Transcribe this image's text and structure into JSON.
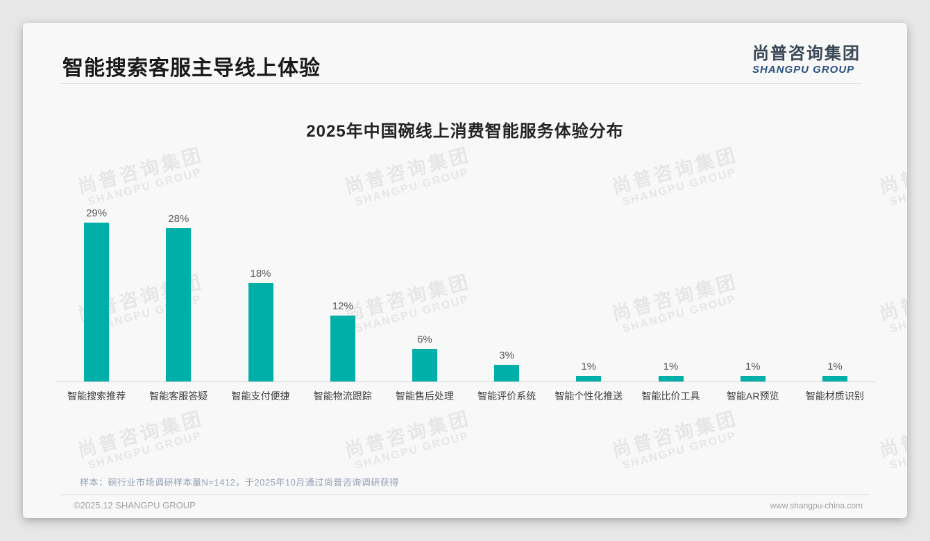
{
  "header": {
    "title": "智能搜索客服主导线上体验",
    "logo": {
      "cn": "尚普咨询集团",
      "en": "SHANGPU GROUP"
    }
  },
  "watermark": {
    "line1": "尚普咨询集团",
    "line2": "SHANGPU GROUP"
  },
  "chart_data": {
    "type": "bar",
    "title": "2025年中国碗线上消费智能服务体验分布",
    "categories": [
      "智能搜索推荐",
      "智能客服答疑",
      "智能支付便捷",
      "智能物流跟踪",
      "智能售后处理",
      "智能评价系统",
      "智能个性化推送",
      "智能比价工具",
      "智能AR预览",
      "智能材质识别"
    ],
    "values": [
      29,
      28,
      18,
      12,
      6,
      3,
      1,
      1,
      1,
      1
    ],
    "unit": "%",
    "value_labels": [
      "29%",
      "28%",
      "18%",
      "12%",
      "6%",
      "3%",
      "1%",
      "1%",
      "1%",
      "1%"
    ],
    "bar_color": "#00b0a8",
    "value_label_color": "#595959",
    "axis_color": "#d6d6d6",
    "ylim": [
      0,
      30
    ],
    "grid": false,
    "legend": false,
    "xlabel": "",
    "ylabel": ""
  },
  "note": "样本：碗行业市场调研样本量N=1412，于2025年10月通过尚普咨询调研获得",
  "footer": {
    "left": "©2025.12 SHANGPU GROUP",
    "right": "www.shangpu-china.com"
  }
}
